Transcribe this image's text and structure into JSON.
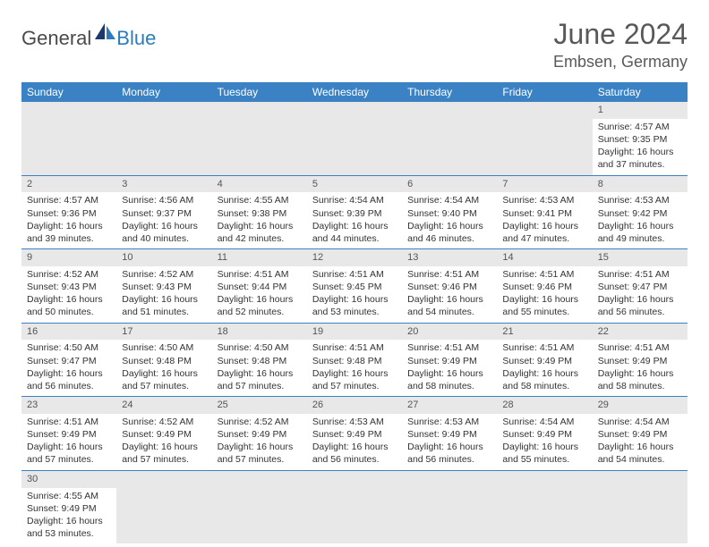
{
  "logo": {
    "general": "General",
    "blue": "Blue"
  },
  "title": "June 2024",
  "location": "Embsen, Germany",
  "day_headers": [
    "Sunday",
    "Monday",
    "Tuesday",
    "Wednesday",
    "Thursday",
    "Friday",
    "Saturday"
  ],
  "colors": {
    "header_bg": "#3b82c4",
    "header_text": "#ffffff",
    "daynum_bg": "#e8e8e8",
    "border": "#3b82c4",
    "title_color": "#595959",
    "logo_blue": "#2b7bbf"
  },
  "days": {
    "1": {
      "num": "1",
      "sunrise": "Sunrise: 4:57 AM",
      "sunset": "Sunset: 9:35 PM",
      "dl1": "Daylight: 16 hours",
      "dl2": "and 37 minutes."
    },
    "2": {
      "num": "2",
      "sunrise": "Sunrise: 4:57 AM",
      "sunset": "Sunset: 9:36 PM",
      "dl1": "Daylight: 16 hours",
      "dl2": "and 39 minutes."
    },
    "3": {
      "num": "3",
      "sunrise": "Sunrise: 4:56 AM",
      "sunset": "Sunset: 9:37 PM",
      "dl1": "Daylight: 16 hours",
      "dl2": "and 40 minutes."
    },
    "4": {
      "num": "4",
      "sunrise": "Sunrise: 4:55 AM",
      "sunset": "Sunset: 9:38 PM",
      "dl1": "Daylight: 16 hours",
      "dl2": "and 42 minutes."
    },
    "5": {
      "num": "5",
      "sunrise": "Sunrise: 4:54 AM",
      "sunset": "Sunset: 9:39 PM",
      "dl1": "Daylight: 16 hours",
      "dl2": "and 44 minutes."
    },
    "6": {
      "num": "6",
      "sunrise": "Sunrise: 4:54 AM",
      "sunset": "Sunset: 9:40 PM",
      "dl1": "Daylight: 16 hours",
      "dl2": "and 46 minutes."
    },
    "7": {
      "num": "7",
      "sunrise": "Sunrise: 4:53 AM",
      "sunset": "Sunset: 9:41 PM",
      "dl1": "Daylight: 16 hours",
      "dl2": "and 47 minutes."
    },
    "8": {
      "num": "8",
      "sunrise": "Sunrise: 4:53 AM",
      "sunset": "Sunset: 9:42 PM",
      "dl1": "Daylight: 16 hours",
      "dl2": "and 49 minutes."
    },
    "9": {
      "num": "9",
      "sunrise": "Sunrise: 4:52 AM",
      "sunset": "Sunset: 9:43 PM",
      "dl1": "Daylight: 16 hours",
      "dl2": "and 50 minutes."
    },
    "10": {
      "num": "10",
      "sunrise": "Sunrise: 4:52 AM",
      "sunset": "Sunset: 9:43 PM",
      "dl1": "Daylight: 16 hours",
      "dl2": "and 51 minutes."
    },
    "11": {
      "num": "11",
      "sunrise": "Sunrise: 4:51 AM",
      "sunset": "Sunset: 9:44 PM",
      "dl1": "Daylight: 16 hours",
      "dl2": "and 52 minutes."
    },
    "12": {
      "num": "12",
      "sunrise": "Sunrise: 4:51 AM",
      "sunset": "Sunset: 9:45 PM",
      "dl1": "Daylight: 16 hours",
      "dl2": "and 53 minutes."
    },
    "13": {
      "num": "13",
      "sunrise": "Sunrise: 4:51 AM",
      "sunset": "Sunset: 9:46 PM",
      "dl1": "Daylight: 16 hours",
      "dl2": "and 54 minutes."
    },
    "14": {
      "num": "14",
      "sunrise": "Sunrise: 4:51 AM",
      "sunset": "Sunset: 9:46 PM",
      "dl1": "Daylight: 16 hours",
      "dl2": "and 55 minutes."
    },
    "15": {
      "num": "15",
      "sunrise": "Sunrise: 4:51 AM",
      "sunset": "Sunset: 9:47 PM",
      "dl1": "Daylight: 16 hours",
      "dl2": "and 56 minutes."
    },
    "16": {
      "num": "16",
      "sunrise": "Sunrise: 4:50 AM",
      "sunset": "Sunset: 9:47 PM",
      "dl1": "Daylight: 16 hours",
      "dl2": "and 56 minutes."
    },
    "17": {
      "num": "17",
      "sunrise": "Sunrise: 4:50 AM",
      "sunset": "Sunset: 9:48 PM",
      "dl1": "Daylight: 16 hours",
      "dl2": "and 57 minutes."
    },
    "18": {
      "num": "18",
      "sunrise": "Sunrise: 4:50 AM",
      "sunset": "Sunset: 9:48 PM",
      "dl1": "Daylight: 16 hours",
      "dl2": "and 57 minutes."
    },
    "19": {
      "num": "19",
      "sunrise": "Sunrise: 4:51 AM",
      "sunset": "Sunset: 9:48 PM",
      "dl1": "Daylight: 16 hours",
      "dl2": "and 57 minutes."
    },
    "20": {
      "num": "20",
      "sunrise": "Sunrise: 4:51 AM",
      "sunset": "Sunset: 9:49 PM",
      "dl1": "Daylight: 16 hours",
      "dl2": "and 58 minutes."
    },
    "21": {
      "num": "21",
      "sunrise": "Sunrise: 4:51 AM",
      "sunset": "Sunset: 9:49 PM",
      "dl1": "Daylight: 16 hours",
      "dl2": "and 58 minutes."
    },
    "22": {
      "num": "22",
      "sunrise": "Sunrise: 4:51 AM",
      "sunset": "Sunset: 9:49 PM",
      "dl1": "Daylight: 16 hours",
      "dl2": "and 58 minutes."
    },
    "23": {
      "num": "23",
      "sunrise": "Sunrise: 4:51 AM",
      "sunset": "Sunset: 9:49 PM",
      "dl1": "Daylight: 16 hours",
      "dl2": "and 57 minutes."
    },
    "24": {
      "num": "24",
      "sunrise": "Sunrise: 4:52 AM",
      "sunset": "Sunset: 9:49 PM",
      "dl1": "Daylight: 16 hours",
      "dl2": "and 57 minutes."
    },
    "25": {
      "num": "25",
      "sunrise": "Sunrise: 4:52 AM",
      "sunset": "Sunset: 9:49 PM",
      "dl1": "Daylight: 16 hours",
      "dl2": "and 57 minutes."
    },
    "26": {
      "num": "26",
      "sunrise": "Sunrise: 4:53 AM",
      "sunset": "Sunset: 9:49 PM",
      "dl1": "Daylight: 16 hours",
      "dl2": "and 56 minutes."
    },
    "27": {
      "num": "27",
      "sunrise": "Sunrise: 4:53 AM",
      "sunset": "Sunset: 9:49 PM",
      "dl1": "Daylight: 16 hours",
      "dl2": "and 56 minutes."
    },
    "28": {
      "num": "28",
      "sunrise": "Sunrise: 4:54 AM",
      "sunset": "Sunset: 9:49 PM",
      "dl1": "Daylight: 16 hours",
      "dl2": "and 55 minutes."
    },
    "29": {
      "num": "29",
      "sunrise": "Sunrise: 4:54 AM",
      "sunset": "Sunset: 9:49 PM",
      "dl1": "Daylight: 16 hours",
      "dl2": "and 54 minutes."
    },
    "30": {
      "num": "30",
      "sunrise": "Sunrise: 4:55 AM",
      "sunset": "Sunset: 9:49 PM",
      "dl1": "Daylight: 16 hours",
      "dl2": "and 53 minutes."
    }
  }
}
